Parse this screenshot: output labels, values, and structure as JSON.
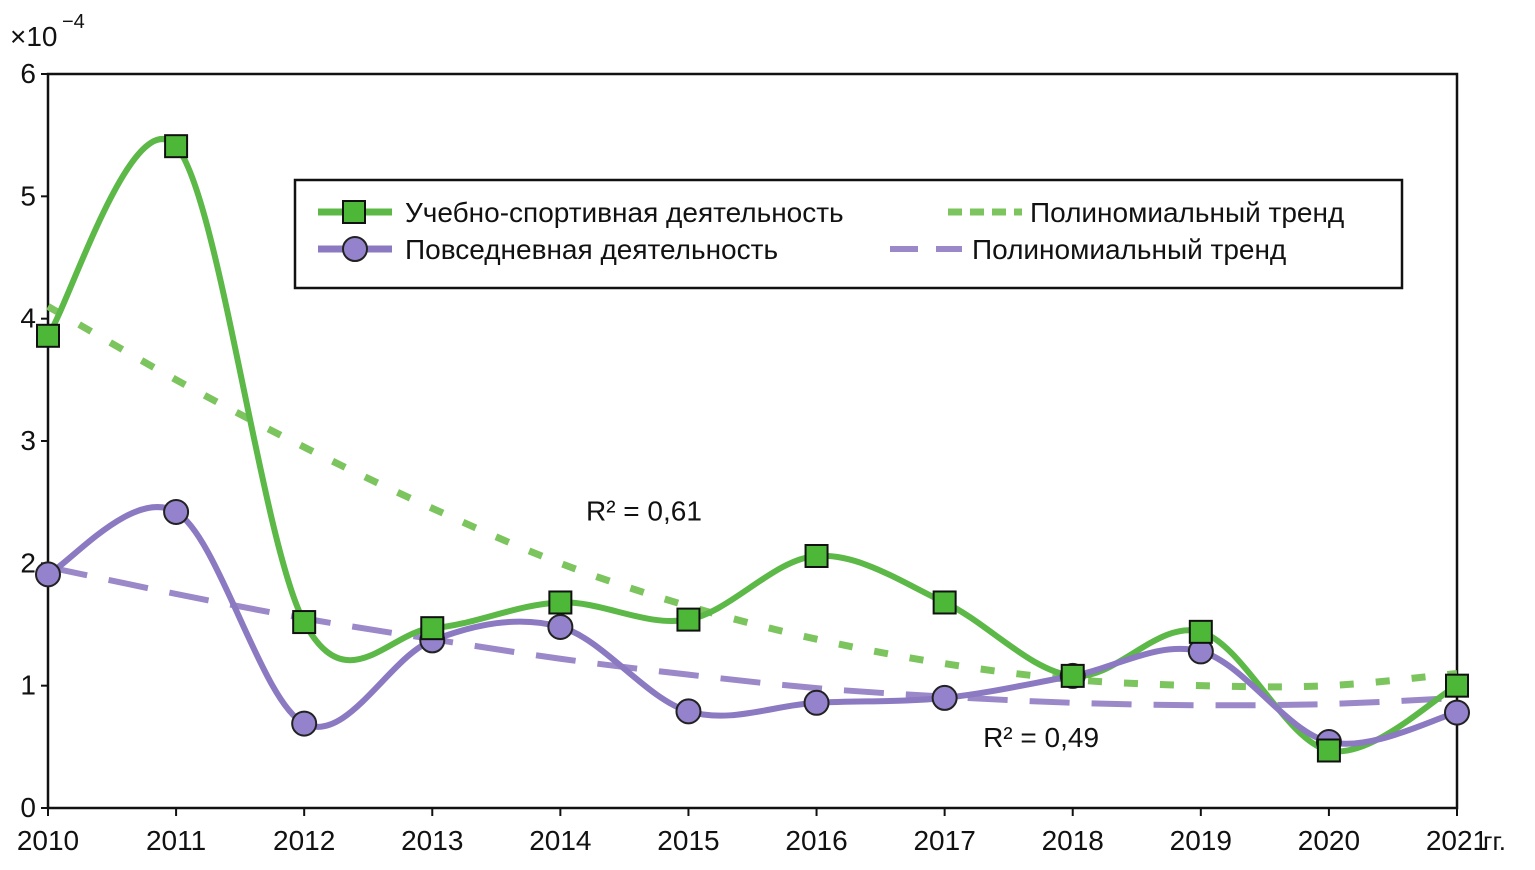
{
  "chart_data": {
    "type": "line",
    "x": [
      2010,
      2011,
      2012,
      2013,
      2014,
      2015,
      2016,
      2017,
      2018,
      2019,
      2020,
      2021
    ],
    "x_tick_labels": [
      "2010",
      "2011",
      "2012",
      "2013",
      "2014",
      "2015",
      "2016",
      "2017",
      "2018",
      "2019",
      "2020",
      "2021"
    ],
    "x_unit": "гг.",
    "y_multiplier": "×10",
    "y_multiplier_exp": "−4",
    "ylim": [
      0,
      6
    ],
    "y_ticks": [
      "0",
      "1",
      "2",
      "3",
      "4",
      "5",
      "6"
    ],
    "grid": false,
    "legend_placement": "top-center",
    "series": [
      {
        "name": "Учебно-спортивная деятельность",
        "style": "solid-smooth",
        "marker": "square",
        "color": "#5cb847",
        "marker_fill": "#4db838",
        "values": [
          3.86,
          5.41,
          1.52,
          1.47,
          1.68,
          1.54,
          2.06,
          1.68,
          1.08,
          1.44,
          0.47,
          1.0
        ]
      },
      {
        "name": "Повседневная деятельность",
        "style": "solid-smooth",
        "marker": "circle",
        "color": "#8b79c2",
        "marker_fill": "#9483cc",
        "values": [
          1.91,
          2.42,
          0.69,
          1.37,
          1.48,
          0.79,
          0.86,
          0.9,
          1.08,
          1.28,
          0.54,
          0.78
        ]
      },
      {
        "name": "Полиномиальный тренд",
        "style": "dotted",
        "color": "#7cc45e",
        "values": [
          4.1,
          3.5,
          2.95,
          2.45,
          2.0,
          1.65,
          1.38,
          1.18,
          1.05,
          1.0,
          1.0,
          1.1
        ]
      },
      {
        "name": "Полиномиальный тренд",
        "style": "dashed",
        "color": "#9a88c8",
        "values": [
          1.97,
          1.75,
          1.55,
          1.38,
          1.22,
          1.09,
          0.98,
          0.91,
          0.86,
          0.84,
          0.85,
          0.9
        ]
      }
    ],
    "annotations": [
      {
        "text": "R² = 0,61",
        "x": 2014.2,
        "y": 2.35
      },
      {
        "text": "R² = 0,49",
        "x": 2017.3,
        "y": 0.5
      }
    ]
  }
}
